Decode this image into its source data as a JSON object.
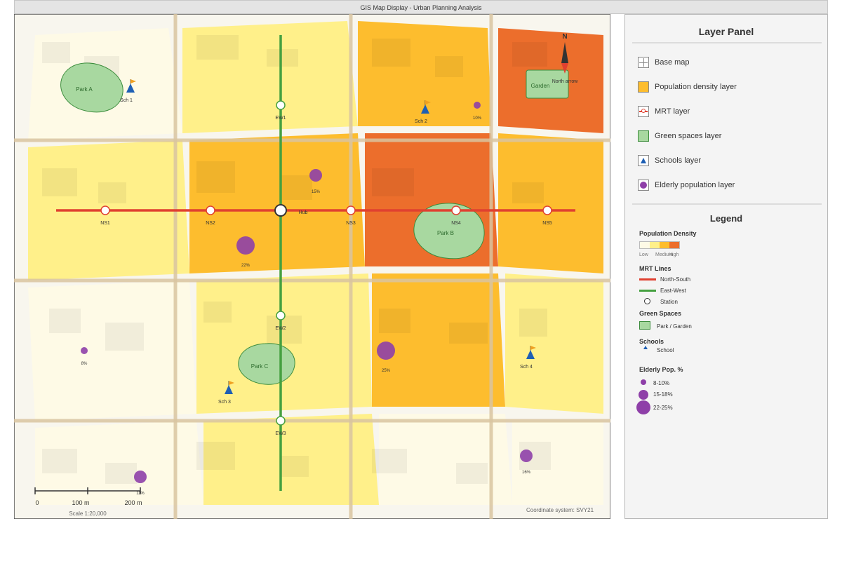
{
  "window": {
    "title": "GIS Map Display - Urban Planning Analysis"
  },
  "colors": {
    "low": "#fefae6",
    "low_med": "#fff08a",
    "medium": "#fdbd2e",
    "high": "#ec6e2c",
    "road": "#d9c4a0",
    "ns_line": "#e04030",
    "ew_line": "#45a040",
    "green": "#a8d8a0",
    "green_stroke": "#3c8c3c",
    "school": "#1e5fb4",
    "flag": "#f0a020",
    "elderly": "#8e3fa8"
  },
  "map": {
    "stations_ns": [
      "NS1",
      "NS2",
      "NS3",
      "NS4",
      "NS5"
    ],
    "stations_ew": [
      "EW1",
      "EW2",
      "EW3"
    ],
    "hub": "Hub",
    "parks": [
      "Park A",
      "Park B",
      "Park C"
    ],
    "garden": "Garden",
    "schools": [
      "Sch 1",
      "Sch 2",
      "Sch 3",
      "Sch 4"
    ],
    "elderly": [
      "10%",
      "15%",
      "22%",
      "8%",
      "25%",
      "11%",
      "16%"
    ],
    "north": "N",
    "north_caption": "North arrow",
    "scale_labels": [
      "0",
      "100 m",
      "200 m"
    ],
    "scale": "Scale 1:20,000",
    "coord_system": "Coordinate system: SVY21"
  },
  "panel": {
    "title": "Layer Panel",
    "layers": [
      {
        "label": "Base map",
        "icon": "grid-icon"
      },
      {
        "label": "Population density layer",
        "icon": "density-icon"
      },
      {
        "label": "MRT layer",
        "icon": "mrt-icon"
      },
      {
        "label": "Green spaces layer",
        "icon": "green-icon"
      },
      {
        "label": "Schools layer",
        "icon": "school-icon"
      },
      {
        "label": "Elderly population layer",
        "icon": "elderly-icon"
      }
    ]
  },
  "legend": {
    "title": "Legend",
    "pop_density": "Population Density",
    "pop_labels": [
      "Low",
      "Medium",
      "High"
    ],
    "mrt_lines": "MRT Lines",
    "north_south": "North-South",
    "east_west": "East-West",
    "station": "Station",
    "green_spaces": "Green Spaces",
    "park_garden": "Park / Garden",
    "schools": "Schools",
    "school": "School",
    "elderly": "Elderly Pop. %",
    "elderly_ranges": [
      "8-10%",
      "15-18%",
      "22-25%"
    ]
  }
}
